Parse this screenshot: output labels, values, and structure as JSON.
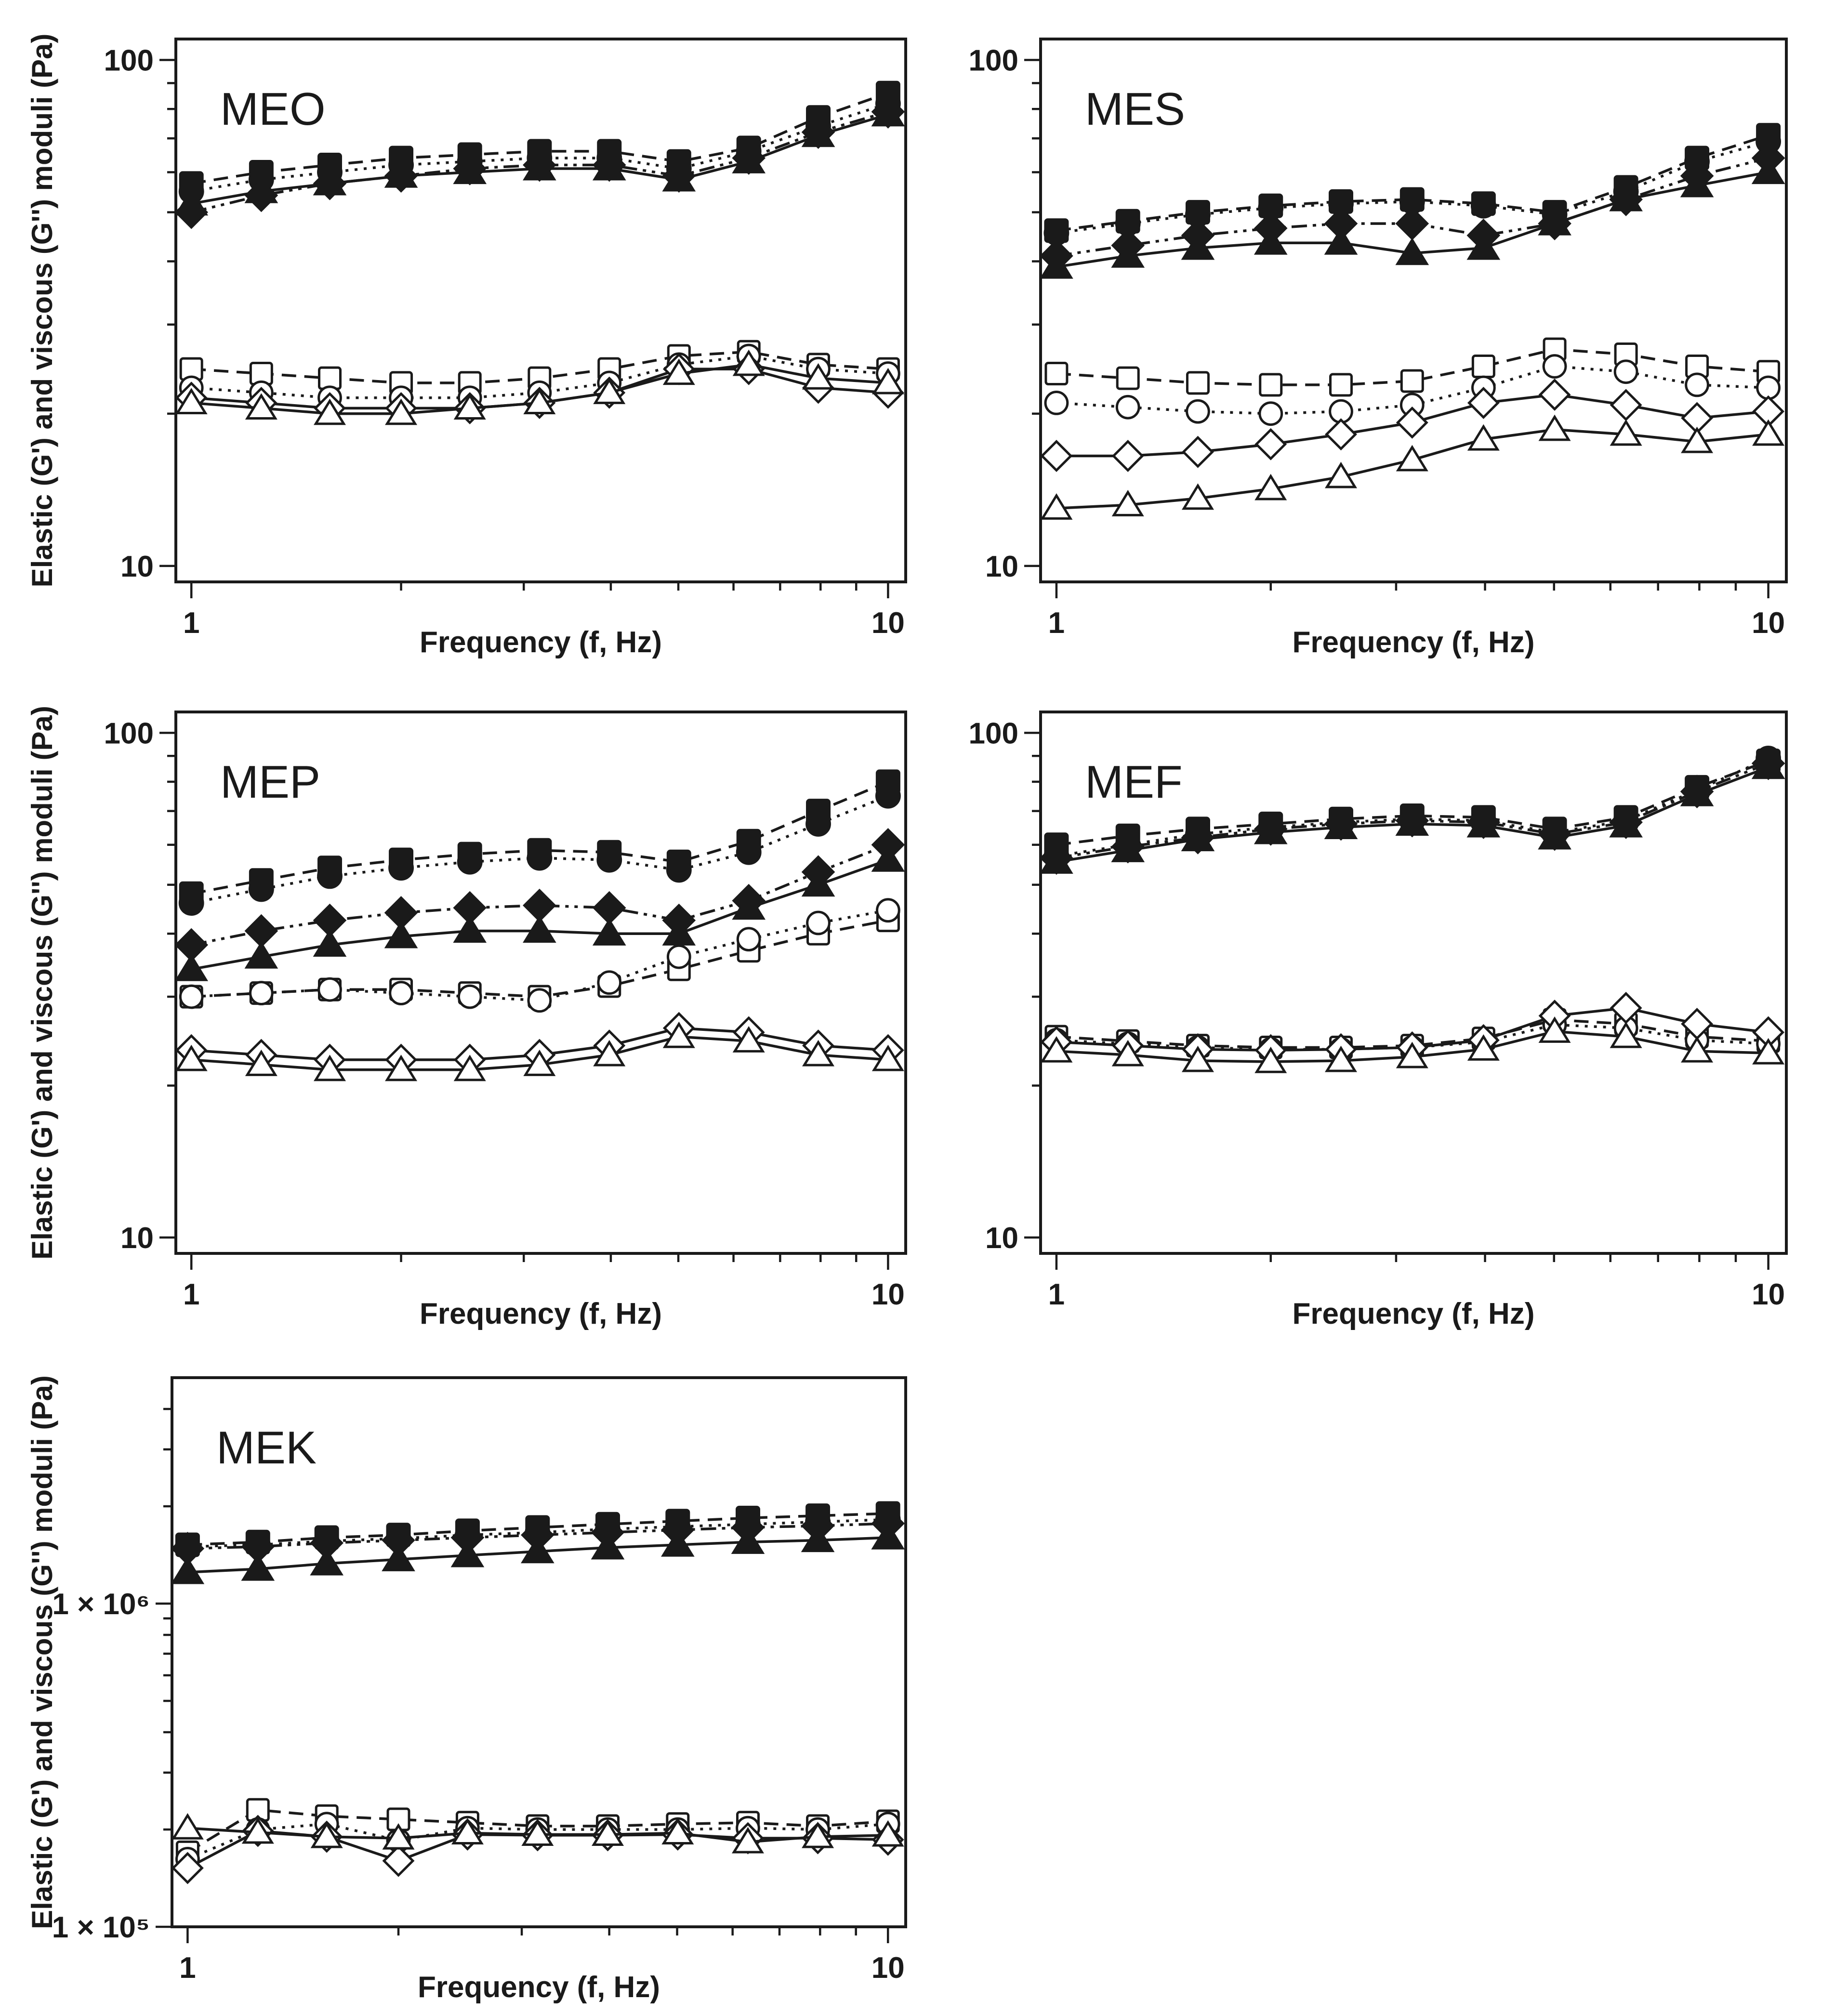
{
  "figure": {
    "background": "#ffffff",
    "ink_color": "#1a1a1a",
    "x_points": [
      1,
      1.26,
      1.58,
      2,
      2.51,
      3.16,
      3.98,
      5.01,
      6.31,
      7.94,
      10
    ]
  },
  "chart_data": [
    {
      "id": "MEO",
      "type": "line",
      "title": "MEO",
      "xlabel": "Frequency (f, Hz)",
      "ylabel": "Elastic (G') and viscous (G'') moduli (Pa)",
      "x_scale": "log",
      "y_scale": "log",
      "xlim": [
        0.95,
        10.6
      ],
      "ylim": [
        9.3,
        110
      ],
      "grid": false,
      "legend": "none",
      "x_ticks": [
        {
          "value": 1,
          "label": "1"
        },
        {
          "value": 10,
          "label": "10"
        }
      ],
      "y_ticks": [
        {
          "value": 10,
          "label": "10"
        },
        {
          "value": 100,
          "label": "100"
        }
      ],
      "series": [
        {
          "name": "G' (filled square)",
          "marker": "square",
          "fill": "filled",
          "line": "dashed",
          "values": [
            57,
            60,
            62,
            64,
            65,
            66,
            66,
            63,
            67,
            77,
            86
          ]
        },
        {
          "name": "G' (filled circle)",
          "marker": "circle",
          "fill": "filled",
          "line": "dotted",
          "values": [
            55,
            58,
            60,
            62,
            63,
            64,
            64,
            61,
            66,
            74,
            82
          ]
        },
        {
          "name": "G' (filled diamond)",
          "marker": "diamond",
          "fill": "filled",
          "line": "dashdotdot",
          "values": [
            50,
            54,
            57,
            59,
            61,
            62,
            62,
            59,
            64,
            72,
            79
          ]
        },
        {
          "name": "G' (filled triangle)",
          "marker": "triangle",
          "fill": "filled",
          "line": "solid",
          "values": [
            52,
            55,
            57,
            59,
            60,
            61,
            61,
            58,
            63,
            71,
            78
          ]
        },
        {
          "name": "G'' (open square)",
          "marker": "square",
          "fill": "open",
          "line": "dashed",
          "values": [
            24.5,
            24,
            23.5,
            23,
            23,
            23.5,
            24.5,
            26,
            26.5,
            25,
            24.5
          ]
        },
        {
          "name": "G'' (open circle)",
          "marker": "circle",
          "fill": "open",
          "line": "dotted",
          "values": [
            22.5,
            22,
            21.5,
            21.5,
            21.5,
            22,
            23,
            25,
            26,
            24.5,
            24
          ]
        },
        {
          "name": "G'' (open diamond)",
          "marker": "diamond",
          "fill": "open",
          "line": "solid",
          "values": [
            21.5,
            21,
            20.5,
            20.5,
            20.5,
            21,
            22,
            24.5,
            24.5,
            22.5,
            22
          ]
        },
        {
          "name": "G'' (open triangle)",
          "marker": "triangle",
          "fill": "open",
          "line": "solid",
          "values": [
            21,
            20.5,
            20,
            20,
            20.5,
            21,
            22,
            24,
            25,
            23.5,
            23
          ]
        }
      ]
    },
    {
      "id": "MES",
      "type": "line",
      "title": "MES",
      "xlabel": "Frequency (f, Hz)",
      "ylabel": "",
      "x_scale": "log",
      "y_scale": "log",
      "xlim": [
        0.95,
        10.6
      ],
      "ylim": [
        9.3,
        110
      ],
      "grid": false,
      "legend": "none",
      "x_ticks": [
        {
          "value": 1,
          "label": "1"
        },
        {
          "value": 10,
          "label": "10"
        }
      ],
      "y_ticks": [
        {
          "value": 10,
          "label": "10"
        },
        {
          "value": 100,
          "label": "100"
        }
      ],
      "series": [
        {
          "name": "G' (filled square)",
          "marker": "square",
          "fill": "filled",
          "line": "dashed",
          "values": [
            46,
            48,
            50,
            51.5,
            52.5,
            53,
            52,
            50,
            56,
            64,
            71
          ]
        },
        {
          "name": "G' (filled circle)",
          "marker": "circle",
          "fill": "filled",
          "line": "dotted",
          "values": [
            45.5,
            47.5,
            49.5,
            51,
            52,
            52.5,
            51.5,
            49.5,
            55,
            63,
            69
          ]
        },
        {
          "name": "G' (filled diamond)",
          "marker": "diamond",
          "fill": "filled",
          "line": "dashdotdot",
          "values": [
            41,
            43,
            45,
            46.5,
            47.5,
            47.5,
            45,
            47.5,
            53,
            59,
            64
          ]
        },
        {
          "name": "G' (filled triangle)",
          "marker": "triangle",
          "fill": "filled",
          "line": "solid",
          "values": [
            39,
            41,
            42.5,
            43.5,
            43.5,
            41.5,
            42.5,
            47.5,
            53,
            56.5,
            60
          ]
        },
        {
          "name": "G'' (open square)",
          "marker": "square",
          "fill": "open",
          "line": "dashed",
          "values": [
            24,
            23.5,
            23,
            22.8,
            22.8,
            23.2,
            24.8,
            26.8,
            26.2,
            24.8,
            24.2
          ]
        },
        {
          "name": "G'' (open circle)",
          "marker": "circle",
          "fill": "open",
          "line": "dotted",
          "values": [
            21,
            20.6,
            20.2,
            20,
            20.2,
            20.8,
            22.5,
            24.8,
            24.2,
            22.8,
            22.5
          ]
        },
        {
          "name": "G'' (open diamond)",
          "marker": "diamond",
          "fill": "open",
          "line": "solid",
          "values": [
            16.5,
            16.5,
            16.8,
            17.4,
            18.2,
            19.2,
            21,
            21.8,
            20.8,
            19.6,
            20.2
          ]
        },
        {
          "name": "G'' (open triangle)",
          "marker": "triangle",
          "fill": "open",
          "line": "solid",
          "values": [
            13,
            13.2,
            13.6,
            14.2,
            15,
            16.2,
            17.8,
            18.6,
            18.2,
            17.6,
            18.2
          ]
        }
      ]
    },
    {
      "id": "MEP",
      "type": "line",
      "title": "MEP",
      "xlabel": "Frequency (f, Hz)",
      "ylabel": "Elastic (G') and viscous (G'') moduli (Pa)",
      "x_scale": "log",
      "y_scale": "log",
      "xlim": [
        0.95,
        10.6
      ],
      "ylim": [
        9.3,
        110
      ],
      "grid": false,
      "legend": "none",
      "x_ticks": [
        {
          "value": 1,
          "label": "1"
        },
        {
          "value": 10,
          "label": "10"
        }
      ],
      "y_ticks": [
        {
          "value": 10,
          "label": "10"
        },
        {
          "value": 100,
          "label": "100"
        }
      ],
      "series": [
        {
          "name": "G' (filled square)",
          "marker": "square",
          "fill": "filled",
          "line": "dashed",
          "values": [
            48,
            51,
            54,
            56,
            57.5,
            58.5,
            58,
            55.5,
            61,
            70,
            80
          ]
        },
        {
          "name": "G' (filled circle)",
          "marker": "circle",
          "fill": "filled",
          "line": "dotted",
          "values": [
            46,
            49,
            52,
            54,
            55.5,
            56.5,
            56,
            53.5,
            58,
            66,
            75
          ]
        },
        {
          "name": "G' (filled diamond)",
          "marker": "diamond",
          "fill": "filled",
          "line": "dashdotdot",
          "values": [
            38,
            40.5,
            42.5,
            44,
            45,
            45.5,
            45,
            42.5,
            46.5,
            53,
            60
          ]
        },
        {
          "name": "G' (filled triangle)",
          "marker": "triangle",
          "fill": "filled",
          "line": "solid",
          "values": [
            34,
            36,
            38,
            39.5,
            40.5,
            40.5,
            40,
            40,
            45,
            50,
            56
          ]
        },
        {
          "name": "G'' (open square)",
          "marker": "square",
          "fill": "open",
          "line": "dashed",
          "values": [
            30,
            30.5,
            31,
            31,
            30.5,
            30,
            31.5,
            34,
            37,
            40,
            42.5
          ]
        },
        {
          "name": "G'' (open circle)",
          "marker": "circle",
          "fill": "open",
          "line": "dotted",
          "values": [
            30,
            30.5,
            31,
            30.5,
            30,
            29.5,
            32,
            36,
            39,
            42,
            44.5
          ]
        },
        {
          "name": "G'' (open diamond)",
          "marker": "diamond",
          "fill": "open",
          "line": "solid",
          "values": [
            23.5,
            23,
            22.5,
            22.5,
            22.5,
            23,
            24,
            26,
            25.5,
            24,
            23.5
          ]
        },
        {
          "name": "G'' (open triangle)",
          "marker": "triangle",
          "fill": "open",
          "line": "solid",
          "values": [
            22.5,
            22,
            21.5,
            21.5,
            21.5,
            22,
            23,
            25,
            24.5,
            23,
            22.5
          ]
        }
      ]
    },
    {
      "id": "MEF",
      "type": "line",
      "title": "MEF",
      "xlabel": "Frequency (f, Hz)",
      "ylabel": "",
      "x_scale": "log",
      "y_scale": "log",
      "xlim": [
        0.95,
        10.6
      ],
      "ylim": [
        9.3,
        110
      ],
      "grid": false,
      "legend": "none",
      "x_ticks": [
        {
          "value": 1,
          "label": "1"
        },
        {
          "value": 10,
          "label": "10"
        }
      ],
      "y_ticks": [
        {
          "value": 10,
          "label": "10"
        },
        {
          "value": 100,
          "label": "100"
        }
      ],
      "series": [
        {
          "name": "G' (filled square)",
          "marker": "square",
          "fill": "filled",
          "line": "dashed",
          "values": [
            60,
            62.5,
            64.5,
            66,
            67.5,
            68.5,
            68,
            64.5,
            68,
            78,
            88
          ]
        },
        {
          "name": "G' (filled circle)",
          "marker": "circle",
          "fill": "filled",
          "line": "dotted",
          "values": [
            57,
            60,
            63,
            65,
            66.5,
            67.5,
            67,
            63.5,
            67,
            77,
            89
          ]
        },
        {
          "name": "G' (filled diamond)",
          "marker": "diamond",
          "fill": "filled",
          "line": "dashdotdot",
          "values": [
            56.5,
            59.5,
            62,
            64.5,
            66,
            67,
            66.5,
            63,
            66.5,
            76.5,
            87
          ]
        },
        {
          "name": "G' (filled triangle)",
          "marker": "triangle",
          "fill": "filled",
          "line": "solid",
          "values": [
            55.5,
            58.5,
            61.5,
            63.5,
            65,
            66,
            65.5,
            62,
            65.5,
            75.5,
            85.5
          ]
        },
        {
          "name": "G'' (open square)",
          "marker": "square",
          "fill": "open",
          "line": "dashed",
          "values": [
            25,
            24.5,
            24,
            23.8,
            23.8,
            24,
            24.8,
            27,
            26.5,
            25,
            24.5
          ]
        },
        {
          "name": "G'' (open circle)",
          "marker": "circle",
          "fill": "open",
          "line": "dotted",
          "values": [
            24.6,
            24.2,
            23.8,
            23.6,
            23.6,
            23.8,
            24.4,
            26.4,
            26,
            24.6,
            24.2
          ]
        },
        {
          "name": "G'' (open diamond)",
          "marker": "diamond",
          "fill": "open",
          "line": "solid",
          "values": [
            24.4,
            24,
            23.6,
            23.5,
            23.6,
            23.8,
            24.6,
            27.5,
            28.5,
            26.5,
            25.5
          ]
        },
        {
          "name": "G'' (open triangle)",
          "marker": "triangle",
          "fill": "open",
          "line": "solid",
          "values": [
            23.4,
            23,
            22.4,
            22.3,
            22.4,
            22.8,
            23.6,
            25.6,
            25,
            23.4,
            23.2
          ]
        }
      ]
    },
    {
      "id": "MEK",
      "type": "line",
      "title": "MEK",
      "xlabel": "Frequency (f, Hz)",
      "ylabel": "Elastic (G') and viscous (G'') moduli (Pa)",
      "x_scale": "log",
      "y_scale": "log",
      "xlim": [
        0.95,
        10.6
      ],
      "ylim": [
        100000,
        5000000
      ],
      "grid": false,
      "legend": "none",
      "x_ticks": [
        {
          "value": 1,
          "label": "1"
        },
        {
          "value": 10,
          "label": "10"
        }
      ],
      "y_ticks": [
        {
          "value": 100000,
          "label": "1 × 10⁵"
        },
        {
          "value": 1000000,
          "label": "1 × 10⁶"
        }
      ],
      "series": [
        {
          "name": "G' (filled square)",
          "marker": "square",
          "fill": "filled",
          "line": "dashed",
          "values": [
            1520000,
            1550000,
            1600000,
            1630000,
            1680000,
            1720000,
            1760000,
            1800000,
            1840000,
            1870000,
            1900000
          ]
        },
        {
          "name": "G' (filled circle)",
          "marker": "circle",
          "fill": "filled",
          "line": "dotted",
          "values": [
            1500000,
            1520000,
            1560000,
            1590000,
            1630000,
            1660000,
            1700000,
            1730000,
            1760000,
            1790000,
            1820000
          ]
        },
        {
          "name": "G' (filled diamond)",
          "marker": "diamond",
          "fill": "filled",
          "line": "dashdotdot",
          "values": [
            1480000,
            1500000,
            1540000,
            1570000,
            1600000,
            1630000,
            1660000,
            1690000,
            1720000,
            1740000,
            1770000
          ]
        },
        {
          "name": "G' (filled triangle)",
          "marker": "triangle",
          "fill": "filled",
          "line": "solid",
          "values": [
            1250000,
            1280000,
            1330000,
            1370000,
            1410000,
            1450000,
            1490000,
            1520000,
            1550000,
            1570000,
            1600000
          ]
        },
        {
          "name": "G'' (open square)",
          "marker": "square",
          "fill": "open",
          "line": "dashed",
          "values": [
            170000,
            230000,
            220000,
            215000,
            210000,
            205000,
            205000,
            208000,
            210000,
            205000,
            212000
          ]
        },
        {
          "name": "G'' (open circle)",
          "marker": "circle",
          "fill": "open",
          "line": "dotted",
          "values": [
            162000,
            200000,
            208000,
            185000,
            202000,
            200000,
            200000,
            200000,
            202000,
            200000,
            208000
          ]
        },
        {
          "name": "G'' (open diamond)",
          "marker": "diamond",
          "fill": "open",
          "line": "solid",
          "values": [
            152000,
            198000,
            190000,
            160000,
            193000,
            192000,
            192000,
            193000,
            188000,
            188000,
            186000
          ]
        },
        {
          "name": "G'' (open triangle)",
          "marker": "triangle",
          "fill": "open",
          "line": "solid",
          "values": [
            202000,
            196000,
            190000,
            188000,
            195000,
            193000,
            193000,
            195000,
            183000,
            190000,
            192000
          ]
        }
      ]
    }
  ]
}
